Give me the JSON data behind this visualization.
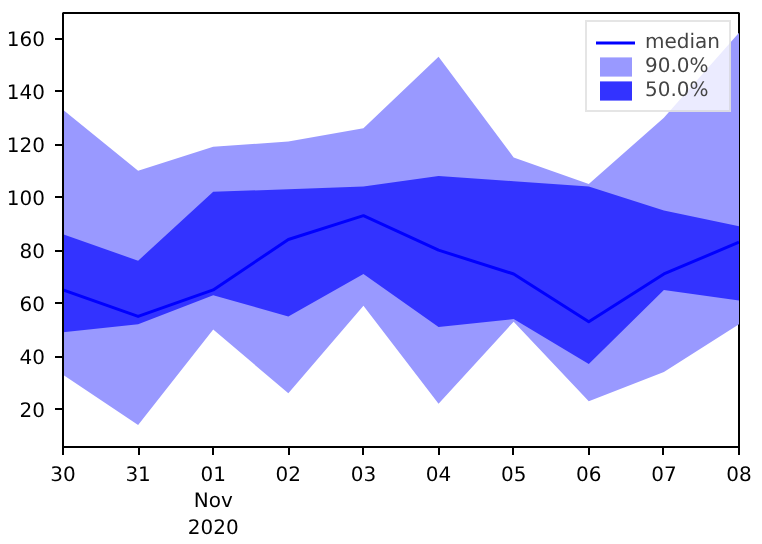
{
  "chart_data": {
    "type": "line",
    "x": [
      "2020-10-30",
      "2020-10-31",
      "2020-11-01",
      "2020-11-02",
      "2020-11-03",
      "2020-11-04",
      "2020-11-05",
      "2020-11-06",
      "2020-11-07",
      "2020-11-08"
    ],
    "series": [
      {
        "name": "median",
        "type": "line",
        "color": "#0000ff",
        "values": [
          65,
          55,
          65,
          84,
          93,
          80,
          71,
          53,
          71,
          83
        ]
      },
      {
        "name": "90.0%",
        "type": "area",
        "color": "#9999ff",
        "values": [
          null,
          null,
          null,
          null,
          null,
          null,
          null,
          null,
          null,
          null
        ],
        "lower": [
          33,
          14,
          50,
          26,
          59,
          22,
          53,
          23,
          34,
          52
        ],
        "upper": [
          133,
          110,
          119,
          121,
          126,
          153,
          115,
          105,
          130,
          162
        ]
      },
      {
        "name": "50.0%",
        "type": "area",
        "color": "#3333ff",
        "values": [
          null,
          null,
          null,
          null,
          null,
          null,
          null,
          null,
          null,
          null
        ],
        "lower": [
          49,
          52,
          63,
          55,
          71,
          51,
          54,
          37,
          65,
          61
        ],
        "upper": [
          86,
          76,
          102,
          103,
          104,
          108,
          106,
          104,
          95,
          89
        ]
      }
    ],
    "xlim": [
      "2020-10-30",
      "2020-11-08"
    ],
    "xticks": [
      {
        "value": "2020-10-30",
        "label": "30"
      },
      {
        "value": "2020-10-31",
        "label": "31"
      },
      {
        "value": "2020-11-01",
        "label": "01\nNov\n2020"
      },
      {
        "value": "2020-11-02",
        "label": "02"
      },
      {
        "value": "2020-11-03",
        "label": "03"
      },
      {
        "value": "2020-11-04",
        "label": "04"
      },
      {
        "value": "2020-11-05",
        "label": "05"
      },
      {
        "value": "2020-11-06",
        "label": "06"
      },
      {
        "value": "2020-11-07",
        "label": "07"
      },
      {
        "value": "2020-11-08",
        "label": "08"
      }
    ],
    "ylim": [
      5.7,
      169.5
    ],
    "yticks": [
      20,
      40,
      60,
      80,
      100,
      120,
      140,
      160
    ],
    "grid": false,
    "legend": "top right"
  }
}
